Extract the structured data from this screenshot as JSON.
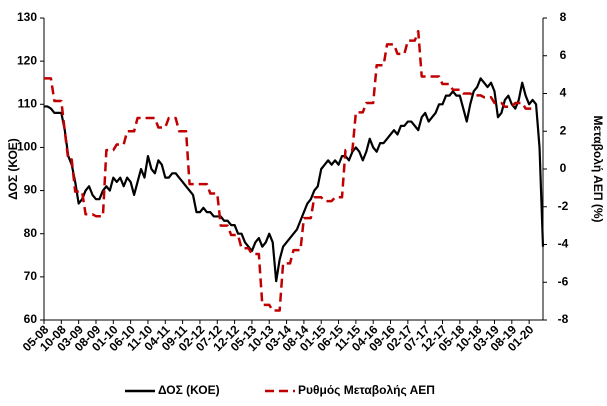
{
  "chart_data": {
    "type": "line",
    "y_label": "ΔΟΣ (ΚΟΕ)",
    "y2_label": "Μεταβολή ΑΕΠ (%)",
    "categories": [
      "05-08",
      null,
      null,
      null,
      null,
      "10-08",
      null,
      null,
      null,
      null,
      "03-09",
      null,
      null,
      null,
      null,
      "08-09",
      null,
      null,
      null,
      null,
      "01-10",
      null,
      null,
      null,
      null,
      "06-10",
      null,
      null,
      null,
      null,
      "11-10",
      null,
      null,
      null,
      null,
      "04-11",
      null,
      null,
      null,
      null,
      "09-11",
      null,
      null,
      null,
      null,
      "02-12",
      null,
      null,
      null,
      null,
      "07-12",
      null,
      null,
      null,
      null,
      "12-12",
      null,
      null,
      null,
      null,
      "05-13",
      null,
      null,
      null,
      null,
      "10-13",
      null,
      null,
      null,
      null,
      "03-14",
      null,
      null,
      null,
      null,
      "08-14",
      null,
      null,
      null,
      null,
      "01-15",
      null,
      null,
      null,
      null,
      "06-15",
      null,
      null,
      null,
      null,
      "11-15",
      null,
      null,
      null,
      null,
      "04-16",
      null,
      null,
      null,
      null,
      "09-16",
      null,
      null,
      null,
      null,
      "02-17",
      null,
      null,
      null,
      null,
      "07-17",
      null,
      null,
      null,
      null,
      "12-17",
      null,
      null,
      null,
      null,
      "05-18",
      null,
      null,
      null,
      null,
      "10-18",
      null,
      null,
      null,
      null,
      "03-19",
      null,
      null,
      null,
      null,
      "08-19",
      null,
      null,
      null,
      null,
      "01-20",
      null,
      null,
      null,
      null
    ],
    "series": [
      {
        "name": "ΔΟΣ (ΚΟΕ)",
        "color": "#000000",
        "dash": false,
        "values": [
          109.5,
          109.5,
          109,
          108,
          108,
          108,
          104,
          98,
          96,
          92,
          87,
          88,
          90,
          91,
          89,
          88,
          88,
          90,
          91,
          90,
          93,
          92,
          93,
          91,
          93,
          92,
          89,
          92,
          95,
          93,
          98,
          95,
          94,
          97,
          96,
          93,
          93,
          94,
          94,
          93,
          92,
          91,
          90,
          89,
          85,
          85,
          86,
          85,
          85,
          84,
          84,
          84,
          83,
          83,
          82,
          82,
          80,
          80,
          78,
          77,
          76,
          78,
          79,
          77,
          78,
          80,
          78,
          69,
          74,
          77,
          78,
          79,
          80,
          81,
          83,
          85,
          87,
          88,
          90,
          91,
          95,
          96,
          97,
          96,
          97,
          96,
          98,
          98,
          97,
          99,
          100,
          99,
          97,
          99,
          102,
          100,
          99,
          101,
          101,
          102,
          103,
          104,
          103,
          105,
          105,
          106,
          106,
          105,
          104,
          107,
          108,
          106,
          107,
          108,
          110,
          110,
          112,
          112,
          113,
          112,
          112,
          109,
          106,
          110,
          113,
          114,
          116,
          115,
          114,
          115,
          113,
          107,
          108,
          111,
          112,
          110,
          109,
          111,
          115,
          112,
          110,
          111,
          110,
          100,
          77
        ]
      },
      {
        "name": "Ρυθμός Μεταβολής ΑΕΠ",
        "color": "#c00000",
        "dash": true,
        "axis": "y2",
        "values": [
          4.8,
          4.8,
          4.8,
          3.6,
          3.6,
          3.6,
          2,
          0.5,
          0.5,
          -1.2,
          -1.2,
          -1.2,
          -2.4,
          -2.4,
          -2.4,
          -2.5,
          -2.5,
          -2.5,
          1,
          1,
          1,
          1.3,
          1.3,
          1.3,
          2,
          2,
          2,
          2.7,
          2.7,
          2.7,
          2.7,
          2.7,
          2.7,
          2.2,
          2.2,
          2.2,
          2.7,
          2.7,
          2.7,
          2,
          2,
          2,
          -0.8,
          -0.8,
          -0.8,
          -0.8,
          -0.8,
          -0.8,
          -1.3,
          -1.3,
          -1.3,
          -3,
          -3,
          -3,
          -3.5,
          -3.5,
          -3.5,
          -4.2,
          -4.2,
          -4.2,
          -4.5,
          -4.5,
          -4.5,
          -7.2,
          -7.2,
          -7.2,
          -7.5,
          -7.5,
          -7.5,
          -5,
          -5,
          -5,
          -4.3,
          -4.3,
          -4.3,
          -2.6,
          -2.6,
          -2.6,
          -1.5,
          -1.5,
          -1.5,
          -1.7,
          -1.7,
          -1.7,
          -1.5,
          -1.5,
          -1.5,
          1,
          1,
          1,
          3,
          3,
          3,
          3.5,
          3.5,
          3.5,
          5.5,
          5.5,
          5.5,
          6.6,
          6.6,
          6.6,
          6.1,
          6.1,
          6.1,
          6.8,
          6.8,
          6.8,
          7.3,
          4.9,
          4.9,
          4.9,
          4.9,
          4.9,
          4.9,
          4.5,
          4.5,
          4.5,
          4.2,
          4.2,
          4.2,
          4,
          4,
          4,
          3.9,
          3.9,
          3.9,
          3.8,
          3.8,
          3.8,
          3.5,
          3.5,
          3.5,
          3.3,
          3.3,
          3.3,
          3.5,
          3.5,
          3.5,
          3.2,
          3.2,
          3.2,
          null,
          null,
          null
        ]
      }
    ],
    "ylim": [
      60,
      130
    ],
    "yticks": [
      60,
      70,
      80,
      90,
      100,
      110,
      120,
      130
    ],
    "y2lim": [
      -8,
      8
    ],
    "y2ticks": [
      -8,
      -6,
      -4,
      -2,
      0,
      2,
      4,
      6,
      8
    ],
    "grid": false,
    "legend": "bottom"
  }
}
